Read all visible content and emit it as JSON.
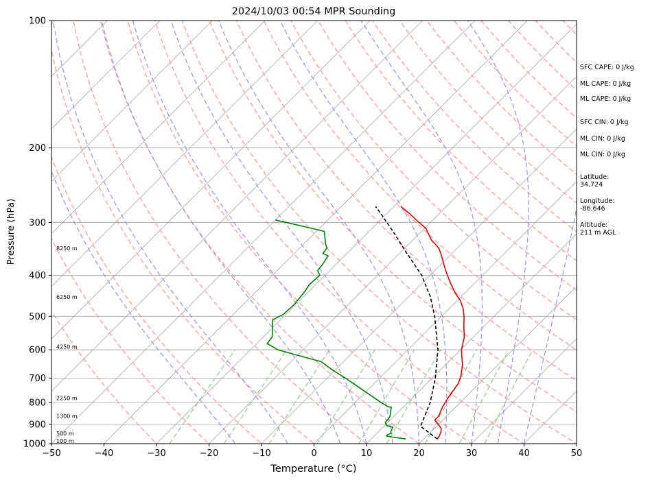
{
  "chart_data": {
    "type": "line",
    "chart_kind": "skew-T log-P sounding",
    "title": "2024/10/03 00:54 MPR Sounding",
    "xlabel": "Temperature (°C)",
    "ylabel": "Pressure (hPa)",
    "xlim": [
      -50,
      50
    ],
    "ylim": [
      1000,
      100
    ],
    "y_scale": "log",
    "x_ticks": [
      -50,
      -40,
      -30,
      -20,
      -10,
      0,
      10,
      20,
      30,
      40,
      50
    ],
    "y_ticks": [
      1000,
      900,
      800,
      700,
      600,
      500,
      400,
      300,
      200,
      100
    ],
    "grid": true,
    "series": [
      {
        "color": "#e30000",
        "style": "solid",
        "points": [
          [
            22.6,
            975
          ],
          [
            22.4,
            960
          ],
          [
            22.0,
            940
          ],
          [
            21.3,
            920
          ],
          [
            20.0,
            900
          ],
          [
            18.5,
            880
          ],
          [
            18.5,
            860
          ],
          [
            18.0,
            840
          ],
          [
            17.5,
            820
          ],
          [
            16.8,
            780
          ],
          [
            16.0,
            720
          ],
          [
            15.0,
            690
          ],
          [
            13.2,
            650
          ],
          [
            11.4,
            620
          ],
          [
            10.2,
            600
          ],
          [
            8.3,
            560
          ],
          [
            6.3,
            530
          ],
          [
            4.3,
            500
          ],
          [
            2.7,
            480
          ],
          [
            0.7,
            460
          ],
          [
            -1.9,
            440
          ],
          [
            -4.3,
            420
          ],
          [
            -6.7,
            400
          ],
          [
            -9.1,
            380
          ],
          [
            -11.5,
            360
          ],
          [
            -13.5,
            345
          ],
          [
            -16.5,
            330
          ],
          [
            -19.7,
            310
          ],
          [
            -22.9,
            297
          ],
          [
            -25.9,
            285
          ],
          [
            -28.7,
            275
          ]
        ]
      },
      {
        "color": "#008000",
        "style": "solid",
        "points": [
          [
            16.6,
            975
          ],
          [
            13.8,
            965
          ],
          [
            12.4,
            960
          ],
          [
            12.2,
            955
          ],
          [
            12.7,
            945
          ],
          [
            12.3,
            935
          ],
          [
            11.9,
            915
          ],
          [
            10.3,
            905
          ],
          [
            9.5,
            890
          ],
          [
            9.4,
            870
          ],
          [
            9.2,
            860
          ],
          [
            8.3,
            835
          ],
          [
            7.8,
            820
          ],
          [
            7.1,
            818
          ],
          [
            5.0,
            800
          ],
          [
            -6.5,
            700
          ],
          [
            -10.5,
            670
          ],
          [
            -14.3,
            640
          ],
          [
            -19.5,
            620
          ],
          [
            -24.8,
            600
          ],
          [
            -28.0,
            580
          ],
          [
            -28.3,
            560
          ],
          [
            -29.8,
            535
          ],
          [
            -31.5,
            510
          ],
          [
            -30.5,
            495
          ],
          [
            -30.3,
            470
          ],
          [
            -30.7,
            440
          ],
          [
            -31.2,
            420
          ],
          [
            -31.0,
            400
          ],
          [
            -32.3,
            390
          ],
          [
            -32.6,
            375
          ],
          [
            -33.1,
            360
          ],
          [
            -34.6,
            355
          ],
          [
            -34.8,
            345
          ],
          [
            -35.9,
            337
          ],
          [
            -38.5,
            315
          ],
          [
            -43.1,
            307
          ],
          [
            -50.0,
            296
          ]
        ]
      },
      {
        "color": "#000000",
        "style": "dashed",
        "points": [
          [
            22.6,
            975
          ],
          [
            17.0,
            910
          ],
          [
            15.8,
            860
          ],
          [
            14.3,
            800
          ],
          [
            10.6,
            700
          ],
          [
            5.7,
            600
          ],
          [
            -1.3,
            500
          ],
          [
            -5.8,
            450
          ],
          [
            -11.6,
            400
          ],
          [
            -19.4,
            350
          ],
          [
            -24.5,
            320
          ],
          [
            -30.3,
            290
          ],
          [
            -33.5,
            275
          ]
        ]
      }
    ],
    "height_labels": [
      "8250 m",
      "6250 m",
      "4250 m",
      "2250 m",
      "1300 m",
      "500 m",
      "100 m"
    ],
    "height_label_pressures": [
      345,
      450,
      590,
      780,
      860,
      945,
      985
    ],
    "side_stats": {
      "sfc_cape": "SFC CAPE: 0 J/kg",
      "ml_cape_1": "ML CAPE: 0 J/kg",
      "ml_cape_2": "ML CAPE: 0 J/kg",
      "sfc_cin": "SFC CIN: 0 J/kg",
      "ml_cin_1": "ML CIN: 0 J/kg",
      "ml_cin_2": "ML CIN: 0 J/kg",
      "latitude_label": "Latitude:",
      "latitude_value": "34.724",
      "longitude_label": "Longitude:",
      "longitude_value": "-86.646",
      "altitude_label": "Altitude:",
      "altitude_value": "211 m AGL"
    },
    "background_lines": {
      "isotherm_color": "#aaaaaa",
      "dry_adiabat_color": "#ff9999",
      "moist_adiabat_color": "#9999ee",
      "mixing_ratio_color": "#99cc99"
    }
  }
}
